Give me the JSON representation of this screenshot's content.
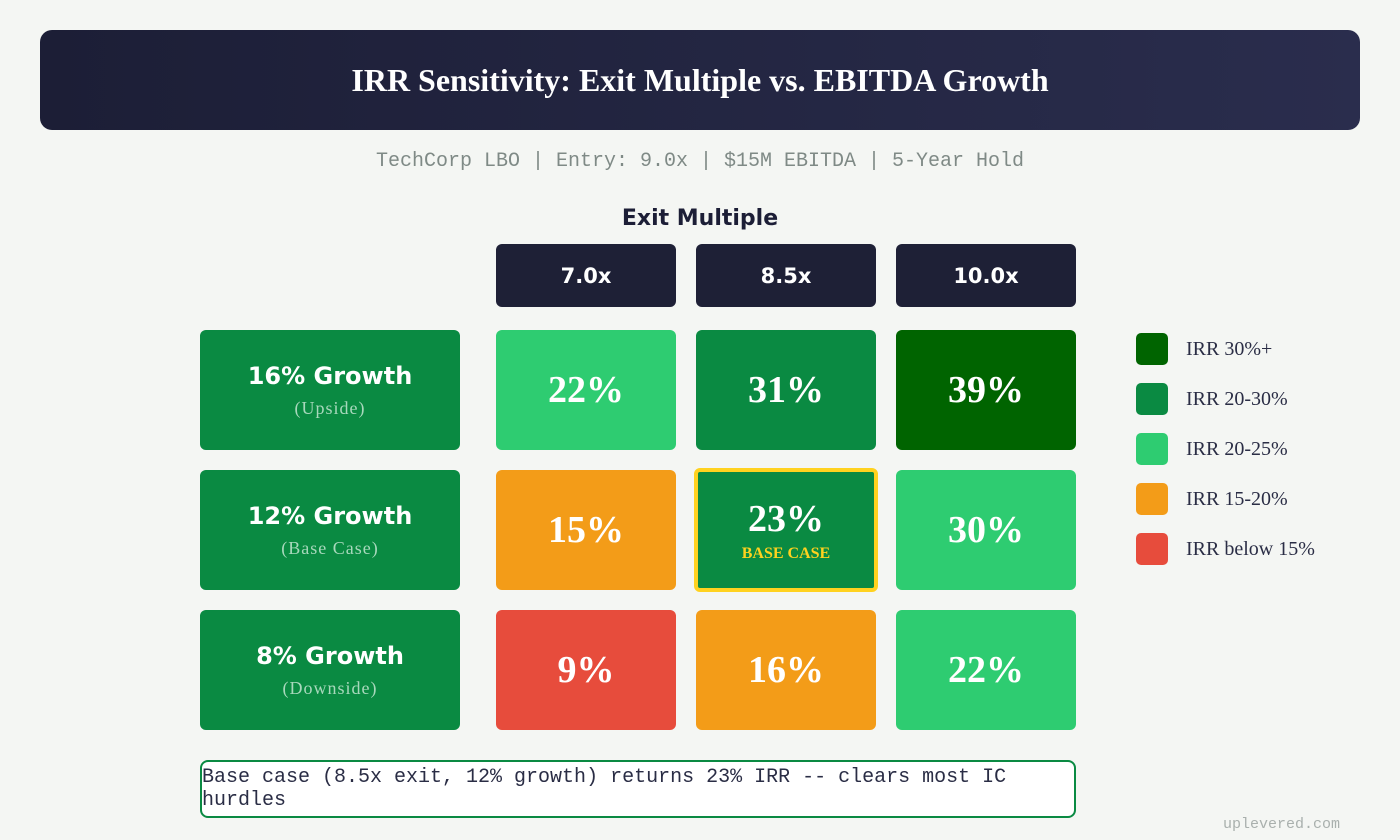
{
  "title": "IRR Sensitivity: Exit Multiple vs. EBITDA Growth",
  "subtitle": "TechCorp LBO | Entry: 9.0x | $15M EBITDA | 5-Year Hold",
  "chart_data": {
    "type": "heatmap",
    "xlabel": "Exit Multiple",
    "columns": [
      "7.0x",
      "8.5x",
      "10.0x"
    ],
    "rows": [
      {
        "label": "16% Growth",
        "sub": "(Upside)",
        "values": [
          "22%",
          "31%",
          "39%"
        ],
        "colors": [
          "#2ecc71",
          "#0a8a42",
          "#006400"
        ]
      },
      {
        "label": "12% Growth",
        "sub": "(Base Case)",
        "values": [
          "15%",
          "23%",
          "30%"
        ],
        "colors": [
          "#f39c18",
          "#0a8a42",
          "#2ecc71"
        ]
      },
      {
        "label": "8% Growth",
        "sub": "(Downside)",
        "values": [
          "9%",
          "16%",
          "22%"
        ],
        "colors": [
          "#e74c3c",
          "#f39c18",
          "#2ecc71"
        ]
      }
    ],
    "base_case_label": "BASE CASE",
    "legend": [
      {
        "label": "IRR 30%+",
        "color": "#006400"
      },
      {
        "label": "IRR 20-30%",
        "color": "#0a8a42"
      },
      {
        "label": "IRR 20-25%",
        "color": "#2ecc71"
      },
      {
        "label": "IRR 15-20%",
        "color": "#f39c18"
      },
      {
        "label": "IRR below 15%",
        "color": "#e74c3c"
      }
    ]
  },
  "footer": "Base case (8.5x exit, 12% growth) returns 23% IRR -- clears most IC hurdles",
  "watermark": "uplevered.com"
}
